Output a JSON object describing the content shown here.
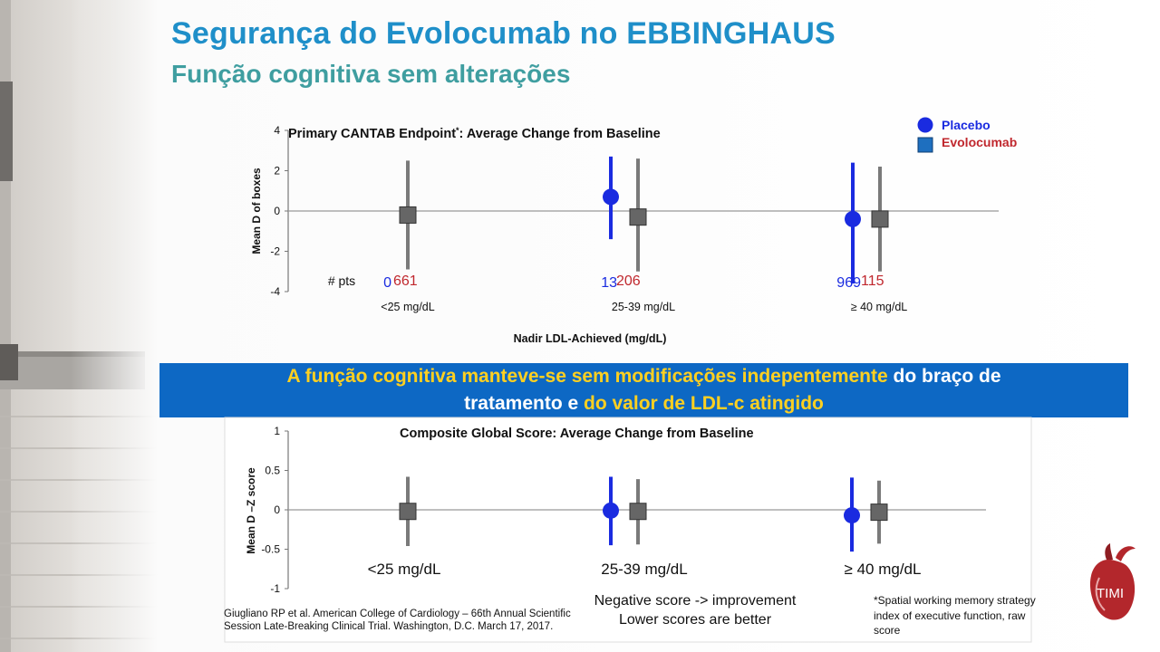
{
  "slide": {
    "title": "Segurança do Evolocumab no EBBINGHAUS",
    "subtitle": "Função cognitiva sem alterações"
  },
  "banner": {
    "line1_yellow": "A função cognitiva manteve-se sem modificações indepentemente",
    "line1_white": " do braço de",
    "line2_white": "tratamento e ",
    "line2_yellow": "do valor de LDL-c atingido"
  },
  "legend": {
    "placebo": "Placebo",
    "evolocumab": "Evolocumab",
    "placebo_color": "#1a2be0",
    "evolocumab_color": "#c0272d"
  },
  "chart_data": [
    {
      "type": "scatter",
      "title": "Primary CANTAB Endpoint",
      "title_sup": "*",
      "title_rest": ": Average Change from Baseline",
      "ylabel": "Mean D of boxes",
      "xlabel": "Nadir LDL-Achieved (mg/dL)",
      "ylim": [
        -4,
        4
      ],
      "yticks": [
        "4",
        "2",
        "0",
        "-2",
        "-4"
      ],
      "categories": [
        "<25 mg/dL",
        "25-39 mg/dL",
        "≥ 40 mg/dL"
      ],
      "npts_label": "# pts",
      "series": [
        {
          "name": "Placebo",
          "color": "#1a2be0",
          "marker": "circle",
          "values": [
            null,
            0.7,
            -0.4
          ],
          "lower": [
            null,
            -1.4,
            -3.6
          ],
          "upper": [
            null,
            2.7,
            2.4
          ],
          "n": [
            "0",
            "13",
            "969"
          ]
        },
        {
          "name": "Evolocumab",
          "color": "#c0272d",
          "marker": "square",
          "values": [
            -0.2,
            -0.3,
            -0.4
          ],
          "lower": [
            -2.9,
            -3.0,
            -3.0
          ],
          "upper": [
            2.5,
            2.6,
            2.2
          ],
          "n": [
            "661",
            "206",
            "115"
          ]
        }
      ]
    },
    {
      "type": "scatter",
      "title": "Composite Global Score: Average Change from Baseline",
      "ylabel": "Mean D –Z score",
      "ylim": [
        -1,
        1
      ],
      "yticks": [
        "1",
        "0.5",
        "0",
        "-0.5",
        "-1"
      ],
      "categories": [
        "<25 mg/dL",
        "25-39 mg/dL",
        "≥ 40 mg/dL"
      ],
      "series": [
        {
          "name": "Placebo",
          "color": "#1a2be0",
          "marker": "circle",
          "values": [
            null,
            -0.01,
            -0.07
          ],
          "lower": [
            null,
            -0.45,
            -0.53
          ],
          "upper": [
            null,
            0.42,
            0.41
          ]
        },
        {
          "name": "Evolocumab",
          "color": "#c0272d",
          "marker": "square",
          "values": [
            -0.02,
            -0.02,
            -0.03
          ],
          "lower": [
            -0.46,
            -0.44,
            -0.43
          ],
          "upper": [
            0.42,
            0.39,
            0.37
          ]
        }
      ]
    }
  ],
  "notes": {
    "citation": "Giugliano RP et al. American College of Cardiology – 66th Annual Scientific Session Late-Breaking Clinical Trial. Washington, D.C. March 17, 2017.",
    "interpretation_1": "Negative score -> improvement",
    "interpretation_2": "Lower scores are better",
    "footnote": "*Spatial working memory strategy index of executive function, raw score"
  },
  "logo": {
    "text": "TIMI"
  }
}
